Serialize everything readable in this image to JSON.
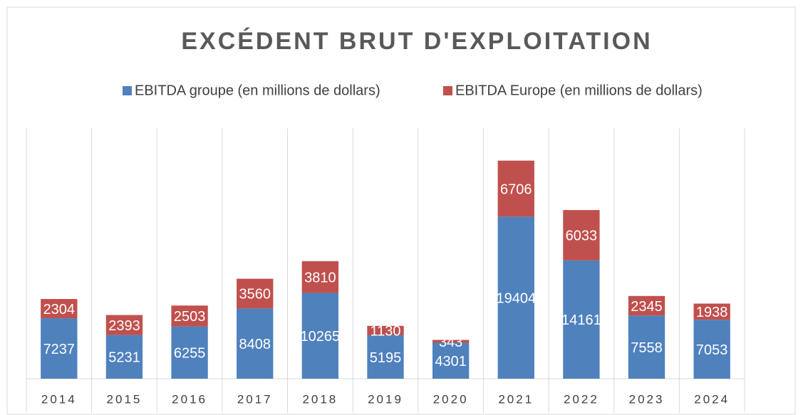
{
  "chart_data": {
    "type": "stacked_bar",
    "title": "EXCÉDENT BRUT D'EXPLOITATION",
    "categories": [
      "2014",
      "2015",
      "2016",
      "2017",
      "2018",
      "2019",
      "2020",
      "2021",
      "2022",
      "2023",
      "2024"
    ],
    "series": [
      {
        "name": "EBITDA groupe (en millions de dollars)",
        "color": "#4f81bd",
        "values": [
          7237,
          5231,
          6255,
          8408,
          10265,
          5195,
          4301,
          19404,
          14161,
          7558,
          7053
        ]
      },
      {
        "name": "EBITDA Europe (en millions de dollars)",
        "color": "#c0504d",
        "values": [
          2304,
          2393,
          2503,
          3560,
          3810,
          1130,
          343,
          6706,
          6033,
          2345,
          1938
        ]
      }
    ],
    "ylim": [
      0,
      30000
    ],
    "legend": "top",
    "grid": "vertical"
  }
}
